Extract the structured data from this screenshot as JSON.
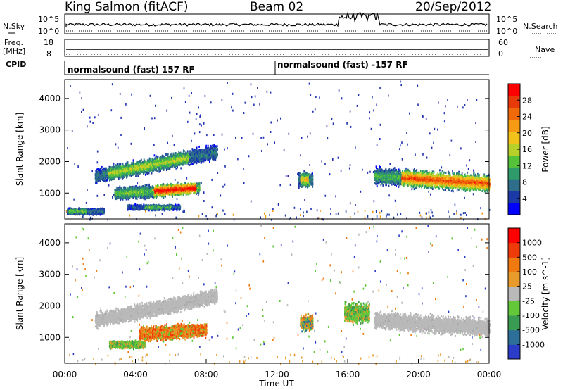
{
  "header": {
    "title": "King Salmon (fitACF)",
    "beam": "Beam 02",
    "date": "20/Sep/2012"
  },
  "nsky_panel": {
    "left_label": "N.Sky",
    "right_label": "N.Search",
    "left_ticks": [
      "10^5",
      "10^0"
    ],
    "right_ticks": [
      "10^5",
      "10^0"
    ]
  },
  "freq_panel": {
    "left_label_1": "Freq.",
    "left_label_2": "[MHz]",
    "right_label": "Nave",
    "left_ticks": [
      "18",
      "8"
    ],
    "right_ticks": [
      "60",
      "0"
    ]
  },
  "cpid_panel": {
    "label": "CPID",
    "segments": [
      {
        "start_hour": 0,
        "end_hour": 12,
        "text": "normalsound (fast) 157 RF"
      },
      {
        "start_hour": 12,
        "end_hour": 24,
        "text": "normalsound (fast) -157 RF"
      }
    ]
  },
  "x_axis": {
    "label": "Time UT",
    "ticks": [
      "00:00",
      "04:00",
      "08:00",
      "12:00",
      "16:00",
      "20:00",
      "00:00"
    ]
  },
  "chart_data": [
    {
      "type": "heatmap",
      "name": "power",
      "ylabel": "Slant Range [km]",
      "ylim": [
        180,
        4600
      ],
      "yticks": [
        "4000",
        "3000",
        "2000",
        "1000"
      ],
      "xlim": [
        0,
        24
      ],
      "colorbar": {
        "label": "Power [dB]",
        "ticks": [
          "28",
          "24",
          "20",
          "16",
          "12",
          "8",
          "4"
        ],
        "colors": [
          "#0000ff",
          "#1b3aa8",
          "#2f6e8a",
          "#2f9b6a",
          "#56c23a",
          "#b8d02a",
          "#f2c21c",
          "#f59a12",
          "#f06a0a",
          "#e83a08",
          "#ff0000"
        ]
      },
      "regions": [
        {
          "t": [
            1.7,
            8.6
          ],
          "r": [
            1400,
            2500
          ],
          "slope": 0.14,
          "thick": 300,
          "core": [
            2.4,
            7.0
          ],
          "level": 0.45
        },
        {
          "t": [
            2.8,
            7.6
          ],
          "r": [
            900,
            1300
          ],
          "slope": 0.05,
          "thick": 250,
          "core": [
            5.0,
            7.4
          ],
          "level": 0.95
        },
        {
          "t": [
            17.5,
            24
          ],
          "r": [
            1000,
            1900
          ],
          "slope": -0.045,
          "thick": 350,
          "core": [
            19.0,
            24
          ],
          "level": 0.8
        },
        {
          "t": [
            13.2,
            14.0
          ],
          "r": [
            1200,
            1700
          ],
          "slope": 0,
          "thick": 300,
          "core": [
            13.3,
            13.8
          ],
          "level": 0.55
        },
        {
          "t": [
            0.1,
            2.2
          ],
          "r": [
            350,
            550
          ],
          "slope": 0,
          "thick": 120,
          "core": [
            0.2,
            1.2
          ],
          "level": 0.4
        },
        {
          "t": [
            3.5,
            6.5
          ],
          "r": [
            500,
            650
          ],
          "slope": 0,
          "thick": 100,
          "core": [
            4.5,
            6.0
          ],
          "level": 0.35
        }
      ]
    },
    {
      "type": "heatmap",
      "name": "velocity",
      "ylabel": "Slant Range [km]",
      "ylim": [
        180,
        4600
      ],
      "yticks": [
        "4000",
        "3000",
        "2000",
        "1000"
      ],
      "xlim": [
        0,
        24
      ],
      "colorbar": {
        "label": "Velocity [m s^-1]",
        "ticks": [
          "1000",
          "500",
          "100",
          "25",
          "-25",
          "-100",
          "-500",
          "-1000"
        ],
        "colors": [
          "#2a3cc8",
          "#2e6f9a",
          "#3a9b52",
          "#62c83a",
          "#b9b9b9",
          "#e89b2a",
          "#f07a10",
          "#ef3b0a",
          "#ff0000"
        ]
      },
      "regions": [
        {
          "t": [
            1.7,
            8.6
          ],
          "r": [
            1400,
            2500
          ],
          "slope": 0.14,
          "thick": 300,
          "vel": "grey"
        },
        {
          "t": [
            17.5,
            24
          ],
          "r": [
            1000,
            1900
          ],
          "slope": -0.045,
          "thick": 350,
          "vel": "grey"
        },
        {
          "t": [
            4.2,
            8.0
          ],
          "r": [
            900,
            1500
          ],
          "slope": 0.05,
          "thick": 300,
          "vel": "orange"
        },
        {
          "t": [
            2.5,
            4.5
          ],
          "r": [
            700,
            900
          ],
          "slope": 0,
          "thick": 150,
          "vel": "green"
        },
        {
          "t": [
            13.3,
            14.0
          ],
          "r": [
            1200,
            1800
          ],
          "slope": 0,
          "thick": 350,
          "vel": "mixed"
        },
        {
          "t": [
            15.8,
            17.2
          ],
          "r": [
            1400,
            2200
          ],
          "slope": 0,
          "thick": 400,
          "vel": "green"
        }
      ]
    }
  ]
}
